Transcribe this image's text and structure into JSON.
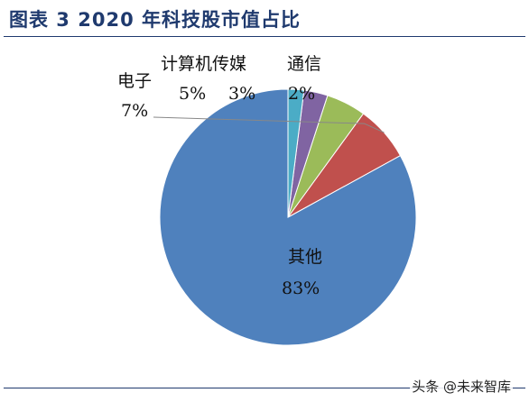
{
  "figure": {
    "title": "图表 3 2020 年科技股市值占比",
    "watermark": "头条 @未来智库"
  },
  "chart_data": {
    "type": "pie",
    "title": "图表 3 2020 年科技股市值占比",
    "slices": [
      {
        "name": "其他",
        "label": "83%",
        "value": 83,
        "color": "#4f81bd"
      },
      {
        "name": "电子",
        "label": "7%",
        "value": 7,
        "color": "#c0504d"
      },
      {
        "name": "计算机",
        "label": "5%",
        "value": 5,
        "color": "#9bbb59"
      },
      {
        "name": "传媒",
        "label": "3%",
        "value": 3,
        "color": "#8064a2"
      },
      {
        "name": "通信",
        "label": "2%",
        "value": 2,
        "color": "#4bacc6"
      }
    ],
    "category_names": [
      "电子",
      "计算机传媒",
      "通信"
    ],
    "start_angle_deg": 0,
    "direction": "counterclockwise"
  }
}
